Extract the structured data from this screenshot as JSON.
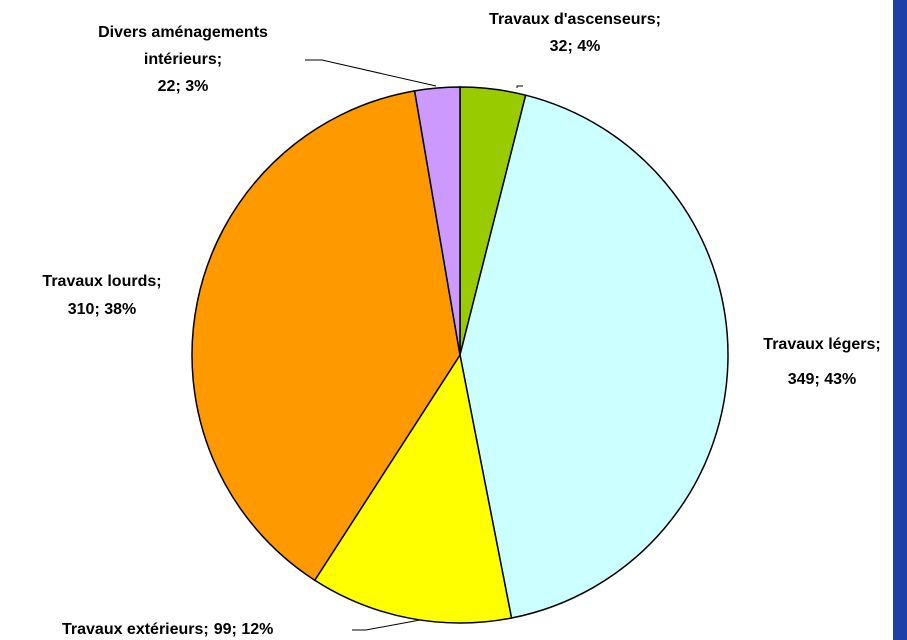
{
  "chart_data": {
    "type": "pie",
    "categories": [
      "Travaux d'ascenseurs;",
      "Travaux légers;",
      "Travaux extérieurs;",
      "Travaux lourds;",
      "Divers aménagements intérieurs;"
    ],
    "values": [
      32,
      349,
      99,
      310,
      22
    ],
    "value_labels": [
      "32; 4%",
      "349; 43%",
      "99; 12%",
      "310; 38%",
      "22; 3%"
    ],
    "colors": [
      "#99cc00",
      "#ccffff",
      "#ffff00",
      "#ff9900",
      "#cc99ff"
    ]
  }
}
